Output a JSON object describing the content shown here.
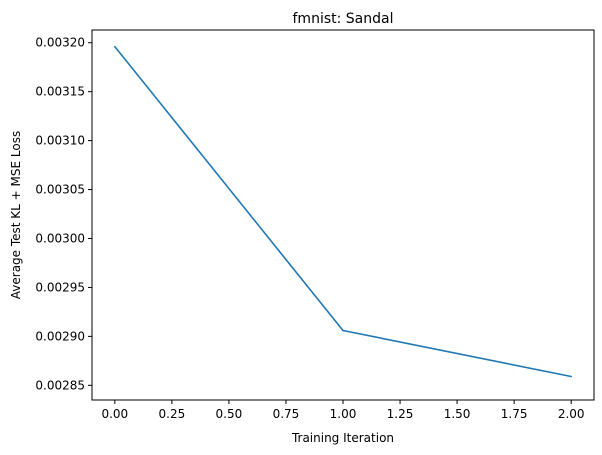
{
  "chart_data": {
    "type": "line",
    "title": "fmnist: Sandal",
    "xlabel": "Training Iteration",
    "ylabel": "Average Test KL + MSE Loss",
    "xlim": [
      -0.1,
      2.1
    ],
    "ylim": [
      0.002835,
      0.003213
    ],
    "xticks": [
      "0.00",
      "0.25",
      "0.50",
      "0.75",
      "1.00",
      "1.25",
      "1.50",
      "1.75",
      "2.00"
    ],
    "yticks": [
      "0.00285",
      "0.00290",
      "0.00295",
      "0.00300",
      "0.00305",
      "0.00310",
      "0.00315",
      "0.00320"
    ],
    "grid": false,
    "series": [
      {
        "color": "#1f77b4",
        "x": [
          0,
          1,
          2
        ],
        "y": [
          0.003196,
          0.002906,
          0.002859
        ]
      }
    ]
  }
}
